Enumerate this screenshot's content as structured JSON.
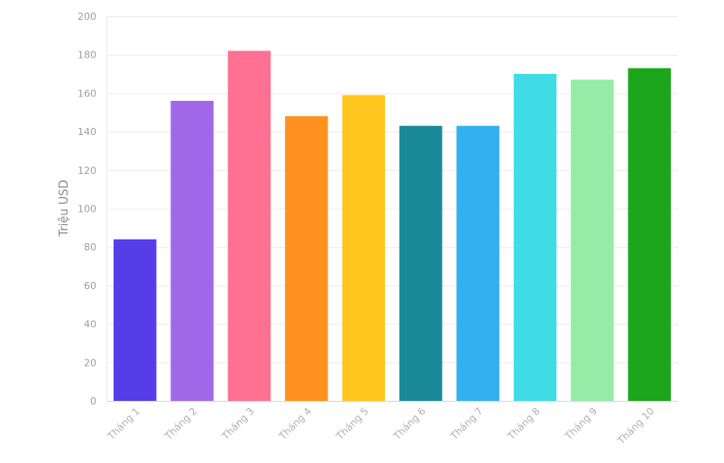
{
  "chart_data": {
    "type": "bar",
    "title": "",
    "xlabel": "",
    "ylabel": "Triệu USD",
    "categories": [
      "Tháng 1",
      "Tháng 2",
      "Tháng 3",
      "Tháng 4",
      "Tháng 5",
      "Tháng 6",
      "Tháng 7",
      "Tháng 8",
      "Tháng 9",
      "Tháng 10"
    ],
    "values": [
      84,
      156,
      182,
      148,
      159,
      143,
      143,
      170,
      167,
      173
    ],
    "colors": [
      "#563de8",
      "#a068e8",
      "#ff7092",
      "#ff921e",
      "#ffc71e",
      "#1a8a99",
      "#33b0f0",
      "#40dce6",
      "#96eca6",
      "#1ba61b"
    ],
    "ylim": [
      0,
      200
    ],
    "yticks": [
      0,
      20,
      40,
      60,
      80,
      100,
      120,
      140,
      160,
      180,
      200
    ],
    "grid": true,
    "legend": "none"
  }
}
